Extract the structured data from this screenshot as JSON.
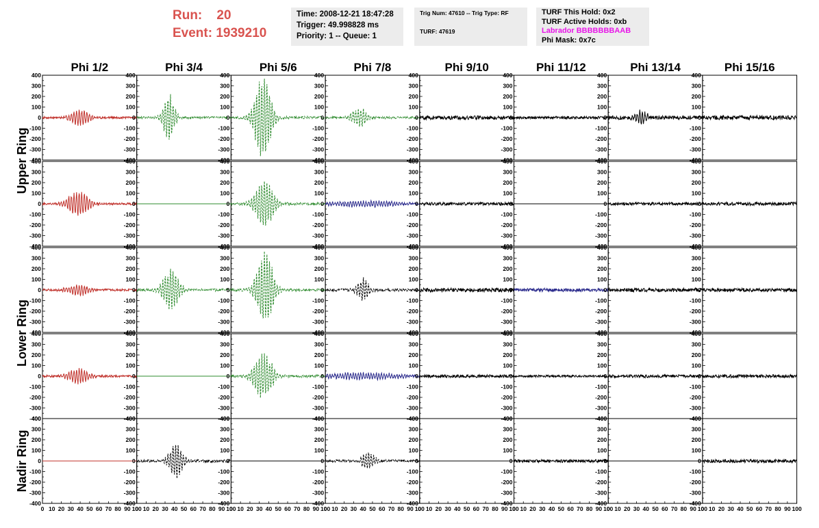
{
  "header": {
    "run_label": "Run:",
    "run_value": "20",
    "event_label": "Event:",
    "event_value": "1939210",
    "time": "Time: 2008-12-21 18:47:28",
    "trigger": "Trigger: 49.998828 ms",
    "priority": "Priority: 1 -- Queue: 1",
    "trig_num": "Trig Num: 47610 -- Trig Type: RF",
    "turf": "TURF: 47619",
    "turf_this_hold": "TURF This Hold: 0x2",
    "turf_active_holds": "TURF Active Holds: 0xb",
    "labrador": "Labrador BBBBBBBAAB",
    "phi_mask": "Phi Mask: 0x7c"
  },
  "colors": {
    "header_red": "#d9534f",
    "labrador_magenta": "#e815e8",
    "trace_red": "#c0302a",
    "trace_green": "#2e8b2e",
    "trace_blue": "#2a2a8c",
    "trace_black": "#000000"
  },
  "chart_data": {
    "type": "line",
    "columns": [
      "Phi 1/2",
      "Phi 3/4",
      "Phi 5/6",
      "Phi 7/8",
      "Phi 9/10",
      "Phi 11/12",
      "Phi 13/14",
      "Phi 15/16"
    ],
    "rows": [
      {
        "label": "Upper Ring",
        "span": 2
      },
      {
        "label": "Lower Ring",
        "span": 2
      },
      {
        "label": "Nadir Ring",
        "span": 1
      }
    ],
    "xlim": [
      0,
      100
    ],
    "ylim": [
      -400,
      400
    ],
    "xticks": [
      "0",
      "10",
      "20",
      "30",
      "40",
      "50",
      "60",
      "70",
      "80",
      "90",
      "100"
    ],
    "yticks": [
      "400",
      "300",
      "200",
      "100",
      "0",
      "-100",
      "-200",
      "-300",
      "-400"
    ],
    "panels": [
      [
        {
          "color": "red",
          "style": "solid",
          "amp": 70,
          "center": 40,
          "width": 8,
          "noise": 10
        },
        {
          "color": "green",
          "style": "dashed",
          "amp": 200,
          "center": 34,
          "width": 5,
          "noise": 10
        },
        {
          "color": "green",
          "style": "dashed",
          "amp": 360,
          "center": 34,
          "width": 7,
          "noise": 12
        },
        {
          "color": "green",
          "style": "dashed",
          "amp": 80,
          "center": 36,
          "width": 7,
          "noise": 10
        },
        {
          "color": "black",
          "style": "solid",
          "amp": 0,
          "center": 0,
          "width": 1,
          "noise": 18
        },
        {
          "color": "black",
          "style": "solid",
          "amp": 0,
          "center": 0,
          "width": 1,
          "noise": 12
        },
        {
          "color": "black",
          "style": "solid",
          "amp": 60,
          "center": 35,
          "width": 5,
          "noise": 18
        },
        {
          "color": "black",
          "style": "solid",
          "amp": 0,
          "center": 0,
          "width": 1,
          "noise": 20
        }
      ],
      [
        {
          "color": "red",
          "style": "solid",
          "amp": 110,
          "center": 38,
          "width": 9,
          "noise": 10
        },
        {
          "color": "green",
          "style": "solid",
          "amp": 0,
          "center": 0,
          "width": 1,
          "noise": 0
        },
        {
          "color": "green",
          "style": "dashed",
          "amp": 200,
          "center": 35,
          "width": 8,
          "noise": 12
        },
        {
          "color": "blue",
          "style": "solid",
          "amp": 25,
          "center": 40,
          "width": 30,
          "noise": 10
        },
        {
          "color": "black",
          "style": "solid",
          "amp": 0,
          "center": 0,
          "width": 1,
          "noise": 14
        },
        {
          "color": "black",
          "style": "solid",
          "amp": 0,
          "center": 0,
          "width": 1,
          "noise": 0
        },
        {
          "color": "black",
          "style": "solid",
          "amp": 0,
          "center": 0,
          "width": 1,
          "noise": 14
        },
        {
          "color": "black",
          "style": "solid",
          "amp": 0,
          "center": 0,
          "width": 1,
          "noise": 16
        }
      ],
      [
        {
          "color": "red",
          "style": "solid",
          "amp": 45,
          "center": 38,
          "width": 10,
          "noise": 10
        },
        {
          "color": "green",
          "style": "dashed",
          "amp": 180,
          "center": 36,
          "width": 7,
          "noise": 12
        },
        {
          "color": "green",
          "style": "dashed",
          "amp": 330,
          "center": 36,
          "width": 7,
          "noise": 12
        },
        {
          "color": "black",
          "style": "dashed",
          "amp": 100,
          "center": 40,
          "width": 5,
          "noise": 12
        },
        {
          "color": "black",
          "style": "solid",
          "amp": 0,
          "center": 0,
          "width": 1,
          "noise": 18
        },
        {
          "color": "blue",
          "style": "solid",
          "amp": 0,
          "center": 0,
          "width": 1,
          "noise": 16
        },
        {
          "color": "black",
          "style": "solid",
          "amp": 0,
          "center": 0,
          "width": 1,
          "noise": 18
        },
        {
          "color": "black",
          "style": "solid",
          "amp": 0,
          "center": 0,
          "width": 1,
          "noise": 16
        }
      ],
      [
        {
          "color": "red",
          "style": "solid",
          "amp": 70,
          "center": 38,
          "width": 9,
          "noise": 10
        },
        {
          "color": "green",
          "style": "solid",
          "amp": 0,
          "center": 0,
          "width": 1,
          "noise": 0
        },
        {
          "color": "green",
          "style": "dashed",
          "amp": 190,
          "center": 34,
          "width": 8,
          "noise": 12
        },
        {
          "color": "blue",
          "style": "solid",
          "amp": 30,
          "center": 40,
          "width": 30,
          "noise": 10
        },
        {
          "color": "black",
          "style": "solid",
          "amp": 0,
          "center": 0,
          "width": 1,
          "noise": 14
        },
        {
          "color": "black",
          "style": "solid",
          "amp": 0,
          "center": 0,
          "width": 1,
          "noise": 10
        },
        {
          "color": "black",
          "style": "solid",
          "amp": 0,
          "center": 0,
          "width": 1,
          "noise": 14
        },
        {
          "color": "black",
          "style": "solid",
          "amp": 0,
          "center": 0,
          "width": 1,
          "noise": 14
        }
      ],
      [
        {
          "color": "red",
          "style": "solid",
          "amp": 0,
          "center": 0,
          "width": 1,
          "noise": 0
        },
        {
          "color": "black",
          "style": "dashed",
          "amp": 150,
          "center": 42,
          "width": 6,
          "noise": 12
        },
        {
          "color": "black",
          "style": "solid",
          "amp": 0,
          "center": 0,
          "width": 1,
          "noise": 0
        },
        {
          "color": "black",
          "style": "dashed",
          "amp": 70,
          "center": 45,
          "width": 6,
          "noise": 12
        },
        {
          "color": "black",
          "style": "solid",
          "amp": 0,
          "center": 0,
          "width": 1,
          "noise": 0
        },
        {
          "color": "black",
          "style": "solid",
          "amp": 0,
          "center": 0,
          "width": 1,
          "noise": 14
        },
        {
          "color": "black",
          "style": "solid",
          "amp": 0,
          "center": 0,
          "width": 1,
          "noise": 0
        },
        {
          "color": "black",
          "style": "solid",
          "amp": 0,
          "center": 0,
          "width": 1,
          "noise": 16
        }
      ]
    ]
  }
}
